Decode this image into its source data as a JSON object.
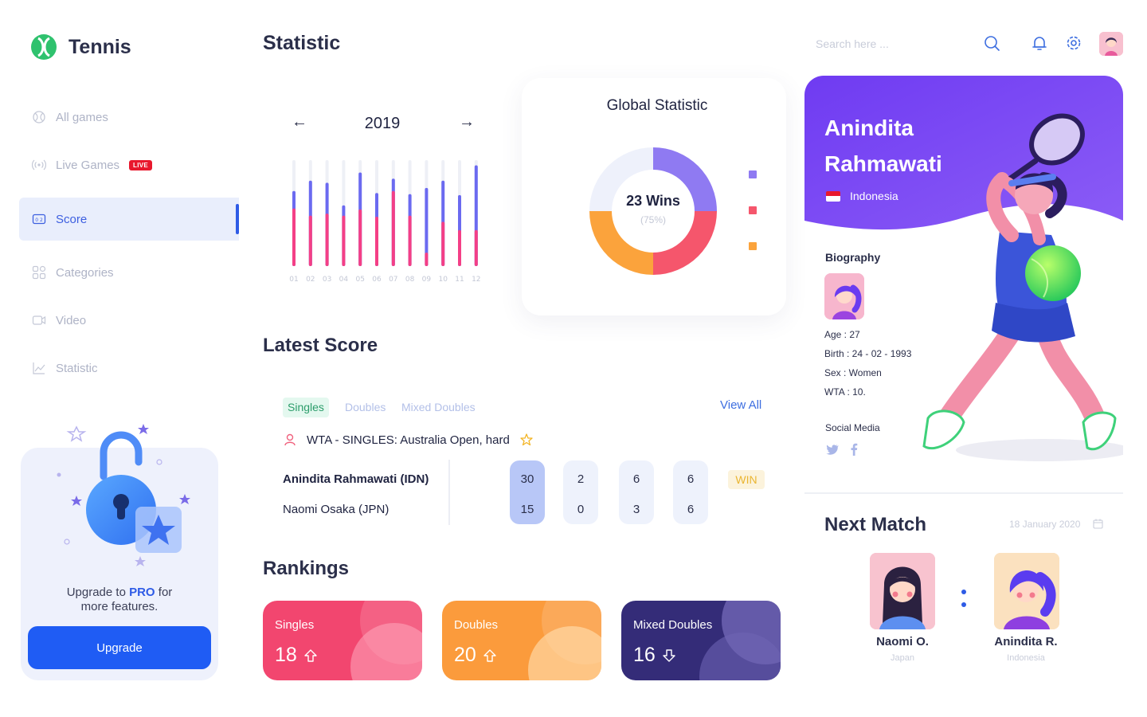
{
  "app": {
    "name": "Tennis"
  },
  "sidebar": {
    "items": [
      {
        "label": "All games",
        "icon": "ball-icon"
      },
      {
        "label": "Live Games",
        "icon": "broadcast-icon",
        "badge": "LIVE"
      },
      {
        "label": "Score",
        "icon": "scoreboard-icon",
        "active": true
      },
      {
        "label": "Categories",
        "icon": "grid-icon"
      },
      {
        "label": "Video",
        "icon": "video-icon"
      },
      {
        "label": "Statistic",
        "icon": "line-chart-icon"
      }
    ],
    "upgrade": {
      "text_before": "Upgrade to",
      "text_highlight": "PRO",
      "text_after": "for",
      "text_line2": "more features.",
      "button": "Upgrade"
    }
  },
  "header": {
    "title": "Statistic",
    "search_placeholder": "Search here ..."
  },
  "year_chart": {
    "year": "2019",
    "prev_arrow": "←",
    "next_arrow": "→",
    "months": [
      "01",
      "02",
      "03",
      "04",
      "05",
      "06",
      "07",
      "08",
      "09",
      "10",
      "11",
      "12"
    ],
    "blue_values": [
      70,
      80,
      78,
      56,
      88,
      68,
      82,
      67,
      73,
      80,
      66,
      95
    ],
    "pink_values": [
      53,
      46,
      48,
      46,
      52,
      45,
      70,
      46,
      10,
      40,
      32,
      32
    ],
    "colors": {
      "track": "#eef0f6",
      "blue": "#6b6af0",
      "pink": "#f43f86"
    }
  },
  "global_statistic": {
    "title": "Global Statistic",
    "wins_label": "23 Wins",
    "percent_label": "(75%)",
    "segments": [
      {
        "value": 25,
        "color": "#8f7af2"
      },
      {
        "value": 25,
        "color": "#f5566c"
      },
      {
        "value": 25,
        "color": "#fba33c"
      },
      {
        "value": 25,
        "color": "#eef1fb"
      }
    ],
    "legend_colors": [
      "#8f7af2",
      "#f5566c",
      "#fba33c"
    ]
  },
  "latest_score": {
    "title": "Latest Score",
    "tabs": [
      "Singles",
      "Doubles",
      "Mixed Doubles"
    ],
    "view_all": "View All",
    "tournament": "WTA - SINGLES: Australia Open, hard",
    "player1": "Anindita Rahmawati (IDN)",
    "player2": "Naomi Osaka (JPN)",
    "sets": [
      {
        "p1": "30",
        "p2": "15"
      },
      {
        "p1": "2",
        "p2": "0"
      },
      {
        "p1": "6",
        "p2": "3"
      },
      {
        "p1": "6",
        "p2": "6"
      }
    ],
    "result": "WIN"
  },
  "rankings": {
    "title": "Rankings",
    "cards": [
      {
        "label": "Singles",
        "value": "18",
        "trend": "up",
        "color": "#f2466f"
      },
      {
        "label": "Doubles",
        "value": "20",
        "trend": "up",
        "color": "#fb9b3c"
      },
      {
        "label": "Mixed Doubles",
        "value": "16",
        "trend": "down",
        "color": "#342c78"
      }
    ]
  },
  "profile": {
    "first_name": "Anindita",
    "last_name": "Rahmawati",
    "country": "Indonesia",
    "biography_title": "Biography",
    "age": "Age : 27",
    "birth": "Birth : 24 - 02 - 1993",
    "sex": "Sex : Women",
    "wta": "WTA : 10.",
    "social_title": "Social Media",
    "social_icons": [
      "twitter-icon",
      "facebook-icon"
    ]
  },
  "next_match": {
    "title": "Next Match",
    "date": "18 January 2020",
    "player1": {
      "name": "Naomi O.",
      "country": "Japan"
    },
    "player2": {
      "name": "Anindita R.",
      "country": "Indonesia"
    }
  }
}
